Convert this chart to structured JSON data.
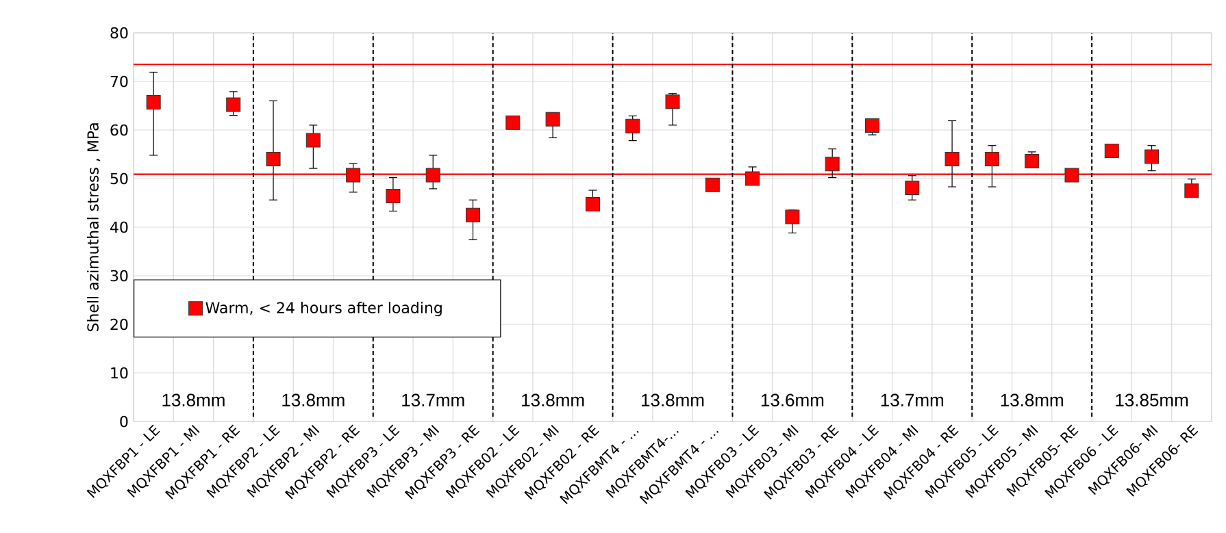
{
  "chart_data": {
    "type": "scatter",
    "ylabel": "Shell azimuthal stress , MPa",
    "categories": [
      "MQXFBP1 - LE",
      "MQXFBP1 - MI",
      "MQXFBP1 - RE",
      "MQXFBP2 - LE",
      "MQXFBP2 - MI",
      "MQXFBP2 - RE",
      "MQXFBP3 - LE",
      "MQXFBP3 - MI",
      "MQXFBP3 - RE",
      "MQXFB02 - LE",
      "MQXFB02 - MI",
      "MQXFB02 - RE",
      "MQXFBMT4 - ...",
      "MQXFBMT4-...",
      "MQXFBMT4 - ...",
      "MQXFB03 - LE",
      "MQXFB03 - MI",
      "MQXFB03 - RE",
      "MQXFB04 - LE",
      "MQXFB04 - MI",
      "MQXFB04 - RE",
      "MQXFB05 - LE",
      "MQXFB05 - MI",
      "MQXFB05- RE",
      "MQXFB06 - LE",
      "MQXFB06- MI",
      "MQXFB06- RE"
    ],
    "series": [
      {
        "name": "Warm, < 24 hours after loading",
        "color": "#ff0000",
        "values": [
          65.7,
          null,
          65.2,
          54.0,
          57.9,
          50.7,
          46.4,
          50.7,
          42.5,
          61.5,
          62.2,
          44.7,
          60.8,
          65.8,
          48.7,
          50.0,
          42.1,
          53.0,
          60.9,
          48.1,
          54.0,
          54.0,
          53.6,
          50.7,
          55.7,
          54.5,
          47.5
        ],
        "errors": [
          [
            54.8,
            71.9
          ],
          null,
          [
            63.0,
            67.9
          ],
          [
            45.6,
            66.0
          ],
          [
            52.1,
            61.0
          ],
          [
            47.2,
            53.1
          ],
          [
            43.3,
            50.2
          ],
          [
            47.9,
            54.8
          ],
          [
            37.4,
            45.6
          ],
          null,
          [
            58.4,
            63.5
          ],
          [
            44.7,
            47.6
          ],
          [
            57.8,
            62.9
          ],
          [
            61.0,
            67.5
          ],
          null,
          [
            50.0,
            52.4
          ],
          [
            38.8,
            43.5
          ],
          [
            50.2,
            56.1
          ],
          [
            59.0,
            62.2
          ],
          [
            45.6,
            50.6
          ],
          [
            48.3,
            61.9
          ],
          [
            48.3,
            56.8
          ],
          [
            53.6,
            55.5
          ],
          null,
          null,
          [
            51.6,
            56.8
          ],
          [
            47.5,
            49.9
          ]
        ]
      }
    ],
    "ylim": [
      0,
      80
    ],
    "yticks": [
      0,
      10,
      20,
      30,
      40,
      50,
      60,
      70,
      80
    ],
    "grid": true,
    "marker": "square",
    "legend": "bottom left",
    "ref_lines": [
      {
        "axis": "y",
        "value": 73.5,
        "color": "#ff0000",
        "line_style": "solid"
      },
      {
        "axis": "y",
        "value": 50.9,
        "color": "#ff0000",
        "line_style": "solid"
      }
    ],
    "annotations": [
      "13.8mm",
      "13.8mm",
      "13.7mm",
      "13.8mm",
      "13.8mm",
      "13.6mm",
      "13.7mm",
      "13.8mm",
      "13.85mm"
    ]
  }
}
